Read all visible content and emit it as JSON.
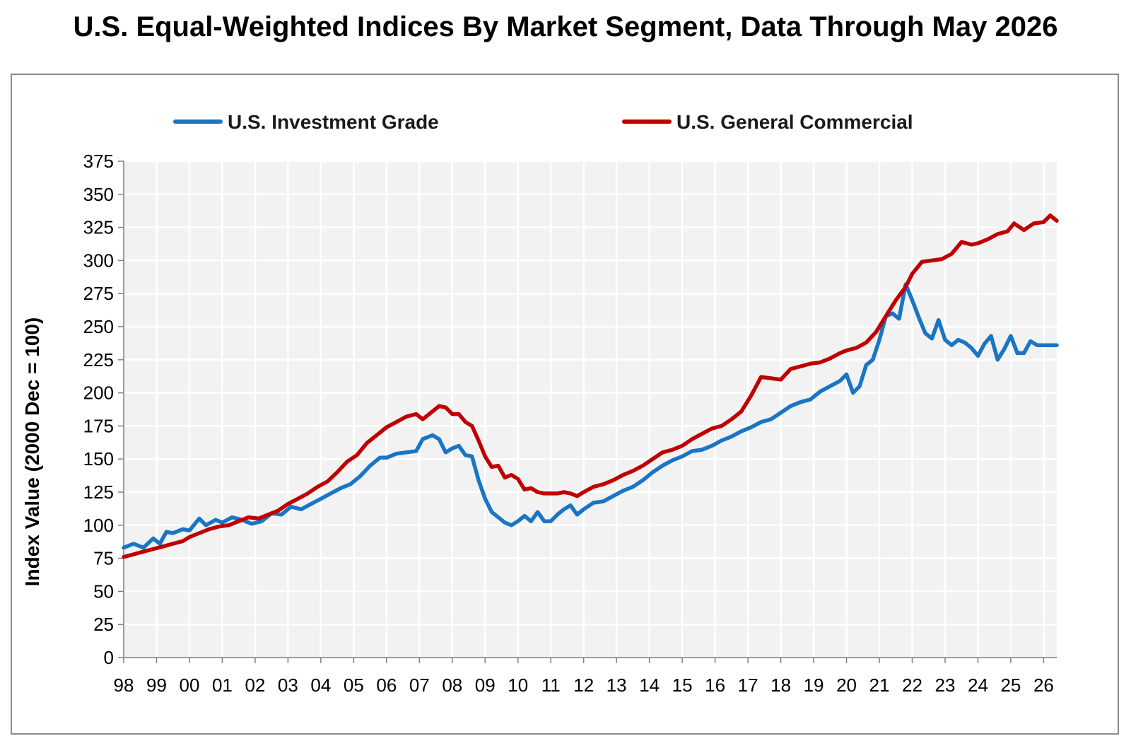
{
  "chart_data": {
    "type": "line",
    "title": "U.S. Equal-Weighted Indices By Market Segment, Data Through May 2026",
    "xlabel": "",
    "ylabel": "Index Value (2000 Dec = 100)",
    "ylim": [
      0,
      375
    ],
    "yticks": [
      "0",
      "25",
      "50",
      "75",
      "100",
      "125",
      "150",
      "175",
      "200",
      "225",
      "250",
      "275",
      "300",
      "325",
      "350",
      "375"
    ],
    "xtick_labels": [
      "98",
      "99",
      "00",
      "01",
      "02",
      "03",
      "04",
      "05",
      "06",
      "07",
      "08",
      "09",
      "10",
      "11",
      "12",
      "13",
      "14",
      "15",
      "16",
      "17",
      "18",
      "19",
      "20",
      "21",
      "22",
      "23",
      "24",
      "25",
      "26"
    ],
    "xlim": [
      1998.0,
      2026.4
    ],
    "grid": true,
    "legend": "top",
    "series": [
      {
        "name": "U.S. Investment Grade",
        "color": "#1a75c4",
        "x": [
          1998.0,
          1998.3,
          1998.6,
          1998.9,
          1999.1,
          1999.3,
          1999.5,
          1999.8,
          2000.0,
          2000.3,
          2000.5,
          2000.8,
          2001.0,
          2001.3,
          2001.6,
          2001.9,
          2002.2,
          2002.5,
          2002.8,
          2003.1,
          2003.4,
          2003.7,
          2004.0,
          2004.3,
          2004.6,
          2004.9,
          2005.2,
          2005.5,
          2005.8,
          2006.0,
          2006.3,
          2006.6,
          2006.9,
          2007.1,
          2007.4,
          2007.6,
          2007.8,
          2008.0,
          2008.2,
          2008.4,
          2008.6,
          2008.8,
          2009.0,
          2009.2,
          2009.4,
          2009.6,
          2009.8,
          2010.0,
          2010.2,
          2010.4,
          2010.6,
          2010.8,
          2011.0,
          2011.2,
          2011.4,
          2011.6,
          2011.8,
          2012.0,
          2012.3,
          2012.6,
          2012.9,
          2013.2,
          2013.5,
          2013.8,
          2014.1,
          2014.4,
          2014.7,
          2015.0,
          2015.3,
          2015.6,
          2015.9,
          2016.2,
          2016.5,
          2016.8,
          2017.1,
          2017.4,
          2017.7,
          2018.0,
          2018.3,
          2018.6,
          2018.9,
          2019.2,
          2019.5,
          2019.8,
          2020.0,
          2020.2,
          2020.4,
          2020.6,
          2020.8,
          2021.0,
          2021.2,
          2021.4,
          2021.6,
          2021.8,
          2022.0,
          2022.2,
          2022.4,
          2022.6,
          2022.8,
          2023.0,
          2023.2,
          2023.4,
          2023.6,
          2023.8,
          2024.0,
          2024.2,
          2024.4,
          2024.6,
          2024.8,
          2025.0,
          2025.2,
          2025.4,
          2025.6,
          2025.8,
          2026.0,
          2026.2,
          2026.4
        ],
        "values": [
          83,
          86,
          83,
          90,
          86,
          95,
          94,
          97,
          96,
          105,
          100,
          104,
          102,
          106,
          104,
          101,
          103,
          109,
          108,
          114,
          112,
          116,
          120,
          124,
          128,
          131,
          137,
          145,
          151,
          151,
          154,
          155,
          156,
          165,
          168,
          165,
          155,
          158,
          160,
          153,
          152,
          134,
          120,
          110,
          106,
          102,
          100,
          103,
          107,
          103,
          110,
          103,
          103,
          108,
          112,
          115,
          108,
          112,
          117,
          118,
          122,
          126,
          129,
          134,
          140,
          145,
          149,
          152,
          156,
          157,
          160,
          164,
          167,
          171,
          174,
          178,
          180,
          185,
          190,
          193,
          195,
          201,
          205,
          209,
          214,
          200,
          205,
          221,
          225,
          240,
          258,
          260,
          256,
          282,
          270,
          257,
          245,
          241,
          255,
          240,
          236,
          240,
          238,
          234,
          228,
          237,
          243,
          225,
          233,
          243,
          230,
          230,
          239,
          236,
          236,
          236,
          236
        ]
      },
      {
        "name": "U.S. General Commercial",
        "color": "#c00000",
        "x": [
          1998.0,
          1998.3,
          1998.6,
          1998.9,
          1999.2,
          1999.5,
          1999.8,
          2000.0,
          2000.3,
          2000.6,
          2000.9,
          2001.2,
          2001.5,
          2001.8,
          2002.1,
          2002.4,
          2002.7,
          2003.0,
          2003.3,
          2003.6,
          2003.9,
          2004.2,
          2004.5,
          2004.8,
          2005.1,
          2005.4,
          2005.7,
          2006.0,
          2006.3,
          2006.6,
          2006.9,
          2007.1,
          2007.4,
          2007.6,
          2007.8,
          2008.0,
          2008.2,
          2008.4,
          2008.6,
          2008.8,
          2009.0,
          2009.2,
          2009.4,
          2009.6,
          2009.8,
          2010.0,
          2010.2,
          2010.4,
          2010.6,
          2010.8,
          2011.0,
          2011.2,
          2011.4,
          2011.6,
          2011.8,
          2012.0,
          2012.3,
          2012.6,
          2012.9,
          2013.2,
          2013.5,
          2013.8,
          2014.1,
          2014.4,
          2014.7,
          2015.0,
          2015.3,
          2015.6,
          2015.9,
          2016.2,
          2016.5,
          2016.8,
          2017.1,
          2017.4,
          2017.7,
          2018.0,
          2018.3,
          2018.6,
          2018.9,
          2019.2,
          2019.5,
          2019.8,
          2020.0,
          2020.3,
          2020.6,
          2020.9,
          2021.2,
          2021.5,
          2021.8,
          2022.0,
          2022.3,
          2022.6,
          2022.9,
          2023.2,
          2023.5,
          2023.8,
          2024.0,
          2024.3,
          2024.6,
          2024.9,
          2025.1,
          2025.4,
          2025.7,
          2026.0,
          2026.2,
          2026.4
        ],
        "values": [
          76,
          78,
          80,
          82,
          84,
          86,
          88,
          91,
          94,
          97,
          99,
          100,
          103,
          106,
          105,
          108,
          111,
          116,
          120,
          124,
          129,
          133,
          140,
          148,
          153,
          162,
          168,
          174,
          178,
          182,
          184,
          180,
          186,
          190,
          189,
          184,
          184,
          178,
          175,
          164,
          152,
          144,
          145,
          136,
          138,
          135,
          127,
          128,
          125,
          124,
          124,
          124,
          125,
          124,
          122,
          125,
          129,
          131,
          134,
          138,
          141,
          145,
          150,
          155,
          157,
          160,
          165,
          169,
          173,
          175,
          180,
          186,
          198,
          212,
          211,
          210,
          218,
          220,
          222,
          223,
          226,
          230,
          232,
          234,
          238,
          246,
          258,
          270,
          280,
          290,
          299,
          300,
          301,
          305,
          314,
          312,
          313,
          316,
          320,
          322,
          328,
          323,
          328,
          329,
          334,
          330
        ]
      }
    ]
  }
}
